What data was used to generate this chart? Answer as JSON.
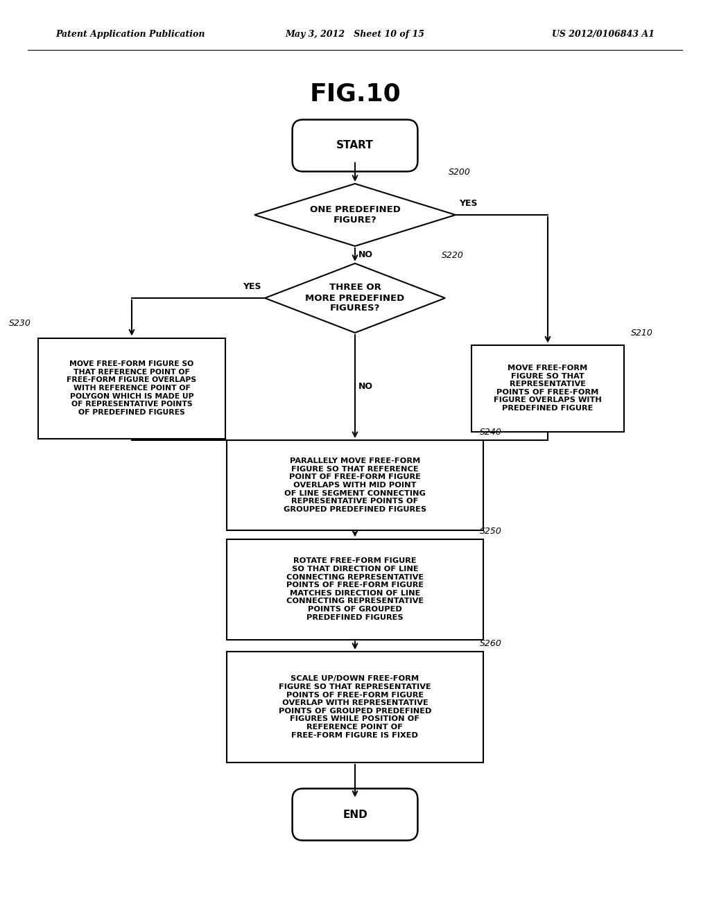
{
  "title": "FIG.10",
  "header_left": "Patent Application Publication",
  "header_center": "May 3, 2012   Sheet 10 of 15",
  "header_right": "US 2012/0106843 A1",
  "background_color": "#ffffff",
  "start_label": "START",
  "end_label": "END",
  "s200_label": "ONE PREDEFINED\nFIGURE?",
  "s200_tag": "S200",
  "s220_label": "THREE OR\nMORE PREDEFINED\nFIGURES?",
  "s220_tag": "S220",
  "s210_label": "MOVE FREE-FORM\nFIGURE SO THAT\nREPRESENTATIVE\nPOINTS OF FREE-FORM\nFIGURE OVERLAPS WITH\nPREDEFINED FIGURE",
  "s210_tag": "S210",
  "s230_label": "MOVE FREE-FORM FIGURE SO\nTHAT REFERENCE POINT OF\nFREE-FORM FIGURE OVERLAPS\nWITH REFERENCE POINT OF\nPOLYGON WHICH IS MADE UP\nOF REPRESENTATIVE POINTS\nOF PREDEFINED FIGURES",
  "s230_tag": "S230",
  "s240_label": "PARALLELY MOVE FREE-FORM\nFIGURE SO THAT REFERENCE\nPOINT OF FREE-FORM FIGURE\nOVERLAPS WITH MID POINT\nOF LINE SEGMENT CONNECTING\nREPRESENTATIVE POINTS OF\nGROUPED PREDEFINED FIGURES",
  "s240_tag": "S240",
  "s250_label": "ROTATE FREE-FORM FIGURE\nSO THAT DIRECTION OF LINE\nCONNECTING REPRESENTATIVE\nPOINTS OF FREE-FORM FIGURE\nMATCHES DIRECTION OF LINE\nCONNECTING REPRESENTATIVE\nPOINTS OF GROUPED\nPREDEFINED FIGURES",
  "s250_tag": "S250",
  "s260_label": "SCALE UP/DOWN FREE-FORM\nFIGURE SO THAT REPRESENTATIVE\nPOINTS OF FREE-FORM FIGURE\nOVERLAP WITH REPRESENTATIVE\nPOINTS OF GROUPED PREDEFINED\nFIGURES WHILE POSITION OF\nREFERENCE POINT OF\nFREE-FORM FIGURE IS FIXED",
  "s260_tag": "S260",
  "yes_label": "YES",
  "no_label": "NO"
}
